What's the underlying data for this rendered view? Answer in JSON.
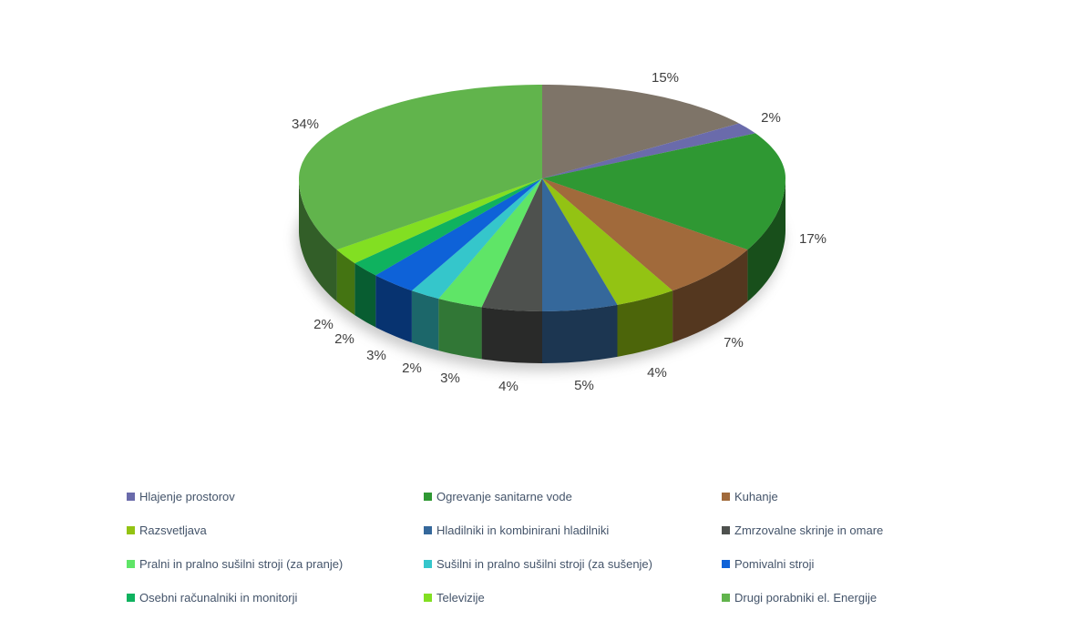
{
  "page": {
    "background": "#FFFFFF"
  },
  "chart_data": {
    "type": "pie",
    "style": "3d-pie",
    "title": "",
    "rotation": "clockwise-from-12-oclock",
    "legend_position": "bottom",
    "legend_columns": 3,
    "label_color": "#404040",
    "legend_text_color": "#44546A",
    "slices": [
      {
        "label": "",
        "value": 15,
        "pct_label": "15%",
        "color": "#7E7468",
        "in_legend": false
      },
      {
        "label": "Hlajenje prostorov",
        "value": 2,
        "pct_label": "2%",
        "color": "#6A6BAB",
        "in_legend": true
      },
      {
        "label": "Ogrevanje sanitarne vode",
        "value": 17,
        "pct_label": "17%",
        "color": "#2F9833",
        "in_legend": true
      },
      {
        "label": "Kuhanje",
        "value": 7,
        "pct_label": "7%",
        "color": "#A16A3B",
        "in_legend": true
      },
      {
        "label": "Razsvetljava",
        "value": 4,
        "pct_label": "4%",
        "color": "#93C313",
        "in_legend": true
      },
      {
        "label": "Hladilniki in kombinirani hladilniki",
        "value": 5,
        "pct_label": "5%",
        "color": "#35689B",
        "in_legend": true
      },
      {
        "label": "Zmrzovalne skrinje in omare",
        "value": 4,
        "pct_label": "4%",
        "color": "#4E514E",
        "in_legend": true
      },
      {
        "label": "Pralni in pralno sušilni stroji (za pranje)",
        "value": 3,
        "pct_label": "3%",
        "color": "#5FE567",
        "in_legend": true
      },
      {
        "label": "Sušilni in pralno sušilni stroji (za sušenje)",
        "value": 2,
        "pct_label": "2%",
        "color": "#35C6CB",
        "in_legend": true
      },
      {
        "label": "Pomivalni stroji",
        "value": 3,
        "pct_label": "3%",
        "color": "#0E62D8",
        "in_legend": true
      },
      {
        "label": "Osebni računalniki in monitorji",
        "value": 2,
        "pct_label": "2%",
        "color": "#0FB25F",
        "in_legend": true
      },
      {
        "label": "Televizije",
        "value": 2,
        "pct_label": "2%",
        "color": "#82DF22",
        "in_legend": true
      },
      {
        "label": "Drugi porabniki el. Energije",
        "value": 34,
        "pct_label": "34%",
        "color": "#61B44C",
        "in_legend": true
      }
    ]
  }
}
